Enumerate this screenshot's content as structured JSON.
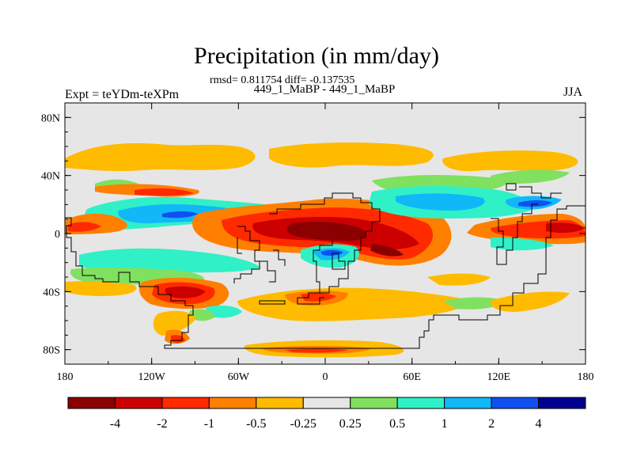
{
  "chart_data": {
    "type": "contour-map",
    "title": "Precipitation (in mm/day)",
    "stats_line": "rmsd= 0.811754 diff= -0.137535",
    "case_line": "449_1_MaBP - 449_1_MaBP",
    "experiment": "Expt = teYDm-teXPm",
    "season": "JJA",
    "x_axis": {
      "range": [
        -180,
        180
      ],
      "ticks": [
        -180,
        -120,
        -60,
        0,
        60,
        120,
        180
      ],
      "tick_labels": [
        "180",
        "120W",
        "60W",
        "0",
        "60E",
        "120E",
        "180"
      ]
    },
    "y_axis": {
      "range": [
        -90,
        90
      ],
      "ticks": [
        80,
        40,
        0,
        -40,
        -80
      ],
      "tick_labels": [
        "80N",
        "40N",
        "0",
        "40S",
        "80S"
      ]
    },
    "colorbar": {
      "colors": [
        "#8b0000",
        "#cc0000",
        "#ff2a00",
        "#ff7f00",
        "#ffbb00",
        "#e6e6e6",
        "#80e060",
        "#30f0c8",
        "#10b8f8",
        "#1050f0",
        "#000090"
      ],
      "labels": [
        "-4",
        "-2",
        "-1",
        "-0.5",
        "-0.25",
        "0.25",
        "0.5",
        "1",
        "2",
        "4"
      ]
    },
    "regions": [
      {
        "name": "north-pacific-orange-band",
        "level": "-0.25",
        "lon": [
          -170,
          -60
        ],
        "lat": [
          40,
          60
        ]
      },
      {
        "name": "north-atlantic-orange-band",
        "level": "-0.25",
        "lon": [
          -40,
          80
        ],
        "lat": [
          40,
          60
        ]
      },
      {
        "name": "north-pacific-cyan-belt",
        "level": "1",
        "lon": [
          -160,
          -60
        ],
        "lat": [
          8,
          20
        ]
      },
      {
        "name": "north-pacific-blue-core",
        "level": "2",
        "lon": [
          -140,
          -80
        ],
        "lat": [
          10,
          16
        ]
      },
      {
        "name": "tropical-atlantic-africa-red",
        "level": "-2",
        "lon": [
          -60,
          80
        ],
        "lat": [
          -10,
          14
        ]
      },
      {
        "name": "africa-dark-red-core",
        "level": "-4",
        "lon": [
          -20,
          30
        ],
        "lat": [
          -4,
          8
        ]
      },
      {
        "name": "arabia-asia-cyan-belt",
        "level": "1",
        "lon": [
          40,
          120
        ],
        "lat": [
          6,
          26
        ]
      },
      {
        "name": "east-asia-blue-core",
        "level": "2",
        "lon": [
          62,
          100
        ],
        "lat": [
          12,
          22
        ]
      },
      {
        "name": "west-pacific-red",
        "level": "-2",
        "lon": [
          120,
          180
        ],
        "lat": [
          -4,
          12
        ]
      },
      {
        "name": "south-atlantic-cyan-blue",
        "level": "2",
        "lon": [
          -10,
          20
        ],
        "lat": [
          -16,
          -8
        ]
      },
      {
        "name": "south-pacific-red",
        "level": "-2",
        "lon": [
          -130,
          -80
        ],
        "lat": [
          -44,
          -32
        ]
      },
      {
        "name": "south-atlantic-orange-band",
        "level": "-0.5",
        "lon": [
          -40,
          20
        ],
        "lat": [
          -60,
          -40
        ]
      },
      {
        "name": "antarctic-coast-orange-strip",
        "level": "-0.25",
        "lon": [
          -50,
          50
        ],
        "lat": [
          -84,
          -80
        ]
      }
    ]
  }
}
